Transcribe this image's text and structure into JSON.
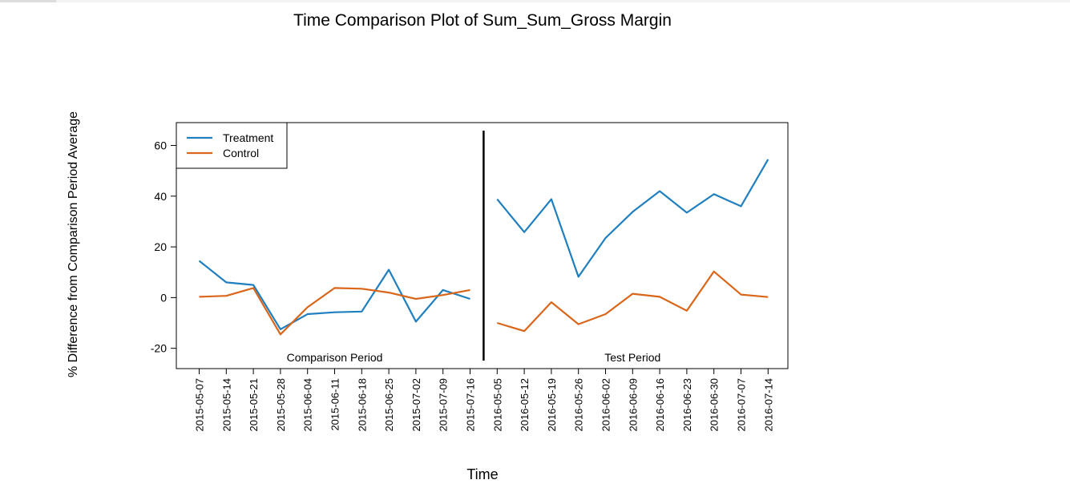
{
  "chart_data": {
    "type": "line",
    "title": "Time Comparison Plot of Sum_Sum_Gross Margin",
    "xlabel": "Time",
    "ylabel": "% Difference from Comparison Period Average",
    "ylim": [
      -28,
      69
    ],
    "yticks": [
      -20,
      0,
      20,
      40,
      60
    ],
    "grid": false,
    "legend_position": "top-left",
    "colors": {
      "Treatment": "#1f7fbf",
      "Control": "#d9661a"
    },
    "x": [
      "2015-05-07",
      "2015-05-14",
      "2015-05-21",
      "2015-05-28",
      "2015-06-04",
      "2015-06-11",
      "2015-06-18",
      "2015-06-25",
      "2015-07-02",
      "2015-07-09",
      "2015-07-16",
      "2016-05-05",
      "2016-05-12",
      "2016-05-19",
      "2016-05-26",
      "2016-06-02",
      "2016-06-09",
      "2016-06-16",
      "2016-06-23",
      "2016-06-30",
      "2016-07-07",
      "2016-07-14"
    ],
    "series": [
      {
        "name": "Treatment",
        "values": [
          14.5,
          6.0,
          5.0,
          -12.5,
          -6.5,
          -5.8,
          -5.5,
          11.0,
          -9.5,
          3.0,
          -0.5,
          38.8,
          25.8,
          38.8,
          8.2,
          23.5,
          33.8,
          42.0,
          33.5,
          40.8,
          36.0,
          54.5
        ]
      },
      {
        "name": "Control",
        "values": [
          0.3,
          0.7,
          3.8,
          -14.5,
          -3.8,
          3.8,
          3.5,
          2.0,
          -0.5,
          1.0,
          3.0,
          -10.0,
          -13.2,
          -1.8,
          -10.5,
          -6.5,
          1.5,
          0.3,
          -5.2,
          10.3,
          1.2,
          0.2
        ]
      }
    ],
    "period_split_after_index": 10,
    "annotations": [
      {
        "text": "Comparison Period",
        "period": "comparison"
      },
      {
        "text": "Test Period",
        "period": "test"
      }
    ]
  }
}
